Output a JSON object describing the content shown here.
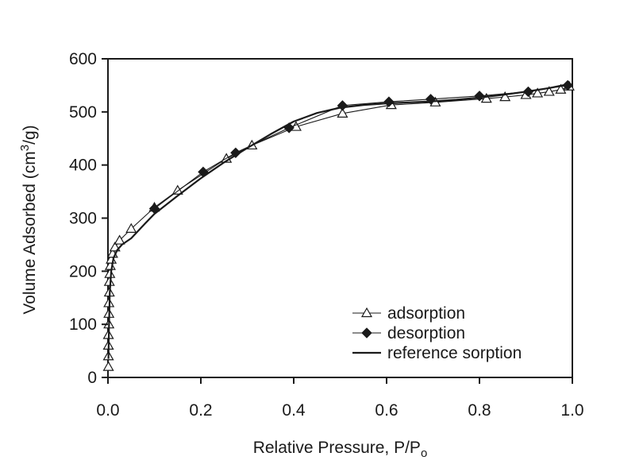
{
  "chart_data": {
    "type": "scatter",
    "xlabel": "Relative Pressure, P/P",
    "xlabel_subscript": "o",
    "ylabel": "Volume Adsorbed (cm",
    "ylabel_superscript": "3",
    "ylabel_suffix": "/g)",
    "xlim": [
      0,
      1.0
    ],
    "ylim": [
      0,
      600
    ],
    "xticks": [
      "0.0",
      "0.2",
      "0.4",
      "0.6",
      "0.8",
      "1.0"
    ],
    "yticks": [
      "0",
      "100",
      "200",
      "300",
      "400",
      "500",
      "600"
    ],
    "grid": false,
    "legend_position": "bottom-right",
    "series": [
      {
        "name": "adsorption",
        "marker": "open-triangle",
        "line": "thin",
        "x": [
          0.001,
          0.001,
          0.001,
          0.001,
          0.002,
          0.002,
          0.002,
          0.003,
          0.003,
          0.004,
          0.005,
          0.007,
          0.01,
          0.015,
          0.025,
          0.05,
          0.1,
          0.15,
          0.255,
          0.31,
          0.405,
          0.505,
          0.61,
          0.705,
          0.815,
          0.855,
          0.9,
          0.925,
          0.95,
          0.975,
          0.993
        ],
        "y": [
          20,
          40,
          60,
          80,
          100,
          120,
          140,
          160,
          180,
          195,
          210,
          222,
          233,
          245,
          258,
          280,
          320,
          352,
          412,
          437,
          472,
          497,
          513,
          518,
          525,
          528,
          532,
          535,
          538,
          542,
          548
        ]
      },
      {
        "name": "desorption",
        "marker": "filled-diamond",
        "line": "thin",
        "x": [
          0.99,
          0.905,
          0.8,
          0.695,
          0.605,
          0.505,
          0.39,
          0.275,
          0.205,
          0.1
        ],
        "y": [
          550,
          538,
          530,
          524,
          519,
          512,
          470,
          423,
          387,
          318
        ]
      },
      {
        "name": "reference sorption",
        "marker": "none",
        "line": "thick",
        "x": [
          0.001,
          0.002,
          0.004,
          0.007,
          0.012,
          0.02,
          0.03,
          0.05,
          0.08,
          0.1,
          0.15,
          0.2,
          0.25,
          0.3,
          0.35,
          0.4,
          0.45,
          0.5,
          0.55,
          0.6,
          0.65,
          0.7,
          0.75,
          0.8,
          0.85,
          0.9,
          0.95,
          0.99
        ],
        "y": [
          35,
          90,
          160,
          200,
          225,
          240,
          250,
          262,
          290,
          308,
          342,
          375,
          405,
          432,
          458,
          482,
          498,
          508,
          513,
          516,
          518,
          520,
          523,
          527,
          532,
          538,
          545,
          552
        ]
      }
    ]
  }
}
